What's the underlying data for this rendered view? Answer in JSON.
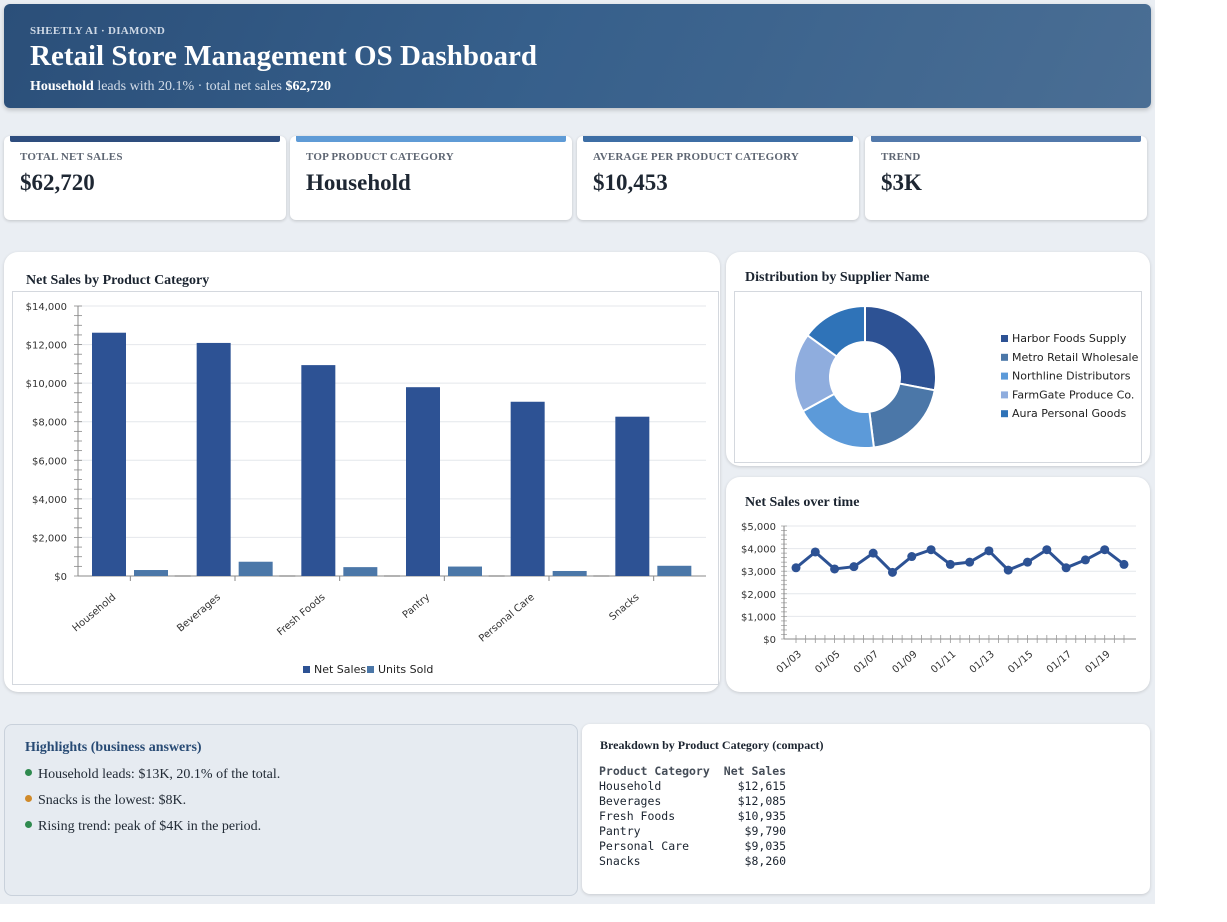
{
  "header": {
    "eyebrow": "SHEETLY AI · DIAMOND",
    "title": "Retail Store Management OS Dashboard",
    "subtitle_lead": "Household",
    "subtitle_mid": " leads with 20.1% · total net sales ",
    "subtitle_total": "$62,720"
  },
  "kpis": [
    {
      "label": "TOTAL NET SALES",
      "value": "$62,720",
      "color": "#2e4d7e"
    },
    {
      "label": "TOP PRODUCT CATEGORY",
      "value": "Household",
      "color": "#5f9bd6"
    },
    {
      "label": "AVERAGE PER PRODUCT CATEGORY",
      "value": "$10,453",
      "color": "#3d6ea5"
    },
    {
      "label": "TREND",
      "value": "$3K",
      "color": "#5279ab"
    }
  ],
  "bar_chart": {
    "title": "Net Sales by Product Category",
    "chart_data": {
      "type": "bar",
      "categories": [
        "Household",
        "Beverages",
        "Fresh Foods",
        "Pantry",
        "Personal Care",
        "Snacks"
      ],
      "series": [
        {
          "name": "Net Sales",
          "values": [
            12615,
            12085,
            10935,
            9790,
            9035,
            8260
          ],
          "color": "#2d5294"
        },
        {
          "name": "Units Sold",
          "values": [
            310,
            740,
            460,
            490,
            260,
            530
          ],
          "color": "#4b77a8"
        }
      ],
      "ylim": [
        0,
        14000
      ],
      "yticks": [
        "$0",
        "$2,000",
        "$4,000",
        "$6,000",
        "$8,000",
        "$10,000",
        "$12,000",
        "$14,000"
      ],
      "legend": "bottom"
    }
  },
  "donut_chart": {
    "title": "Distribution by Supplier Name",
    "chart_data": {
      "type": "pie",
      "labels": [
        "Harbor Foods Supply",
        "Metro Retail Wholesale",
        "Northline Distributors",
        "FarmGate Produce Co.",
        "Aura Personal Goods"
      ],
      "values": [
        28,
        20,
        19,
        18,
        15
      ],
      "colors": [
        "#2d5294",
        "#4b77a8",
        "#5c9ad9",
        "#8fadde",
        "#2f73b8"
      ],
      "legend": "right"
    }
  },
  "line_chart": {
    "title": "Net Sales over time",
    "chart_data": {
      "type": "line",
      "x": [
        "01/03",
        "01/04",
        "01/05",
        "01/06",
        "01/07",
        "01/08",
        "01/09",
        "01/10",
        "01/11",
        "01/12",
        "01/13",
        "01/14",
        "01/15",
        "01/16",
        "01/17",
        "01/18",
        "01/19",
        "01/20"
      ],
      "xtick_labels": [
        "01/03",
        "01/05",
        "01/07",
        "01/09",
        "01/11",
        "01/13",
        "01/15",
        "01/17",
        "01/19"
      ],
      "values": [
        3150,
        3850,
        3100,
        3200,
        3800,
        2950,
        3650,
        3950,
        3300,
        3400,
        3900,
        3050,
        3400,
        3950,
        3150,
        3500,
        3950,
        3300
      ],
      "ylim": [
        0,
        5000
      ],
      "yticks": [
        "$0",
        "$1,000",
        "$2,000",
        "$3,000",
        "$4,000",
        "$5,000"
      ],
      "color": "#2d5294"
    }
  },
  "highlights": {
    "title": "Highlights (business answers)",
    "items": [
      {
        "text": "Household leads: $13K, 20.1% of the total.",
        "color": "#2f8a4f"
      },
      {
        "text": "Snacks is the lowest: $8K.",
        "color": "#d08a2a"
      },
      {
        "text": "Rising trend: peak of $4K in the period.",
        "color": "#2f8a4f"
      }
    ]
  },
  "breakdown": {
    "title": "Breakdown by Product Category (compact)",
    "columns": [
      "Product Category",
      "Net Sales"
    ],
    "rows": [
      [
        "Household",
        "$12,615"
      ],
      [
        "Beverages",
        "$12,085"
      ],
      [
        "Fresh Foods",
        "$10,935"
      ],
      [
        "Pantry",
        "$9,790"
      ],
      [
        "Personal Care",
        "$9,035"
      ],
      [
        "Snacks",
        "$8,260"
      ]
    ]
  }
}
